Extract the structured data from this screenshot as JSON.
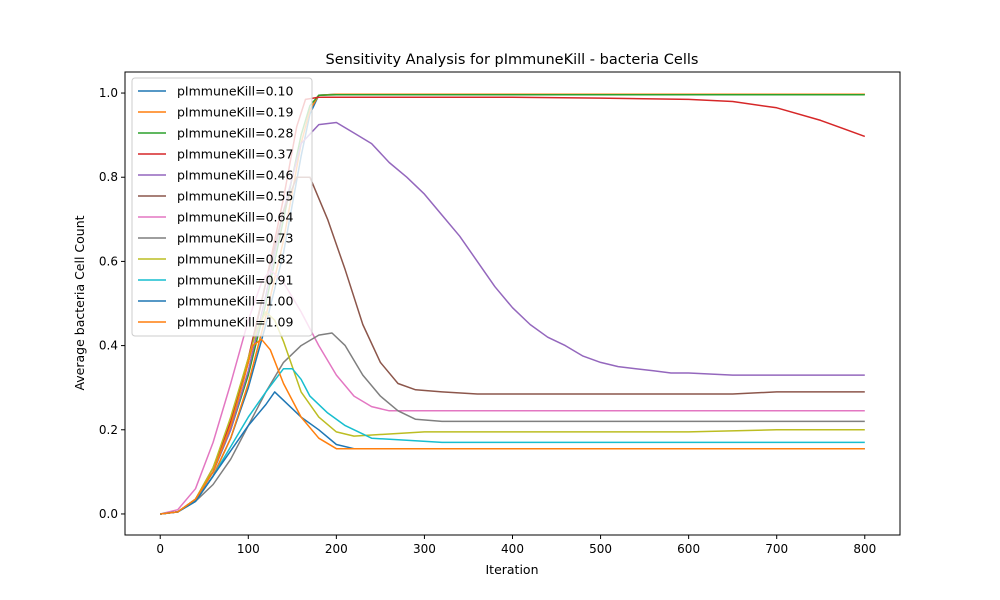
{
  "chart_data": {
    "type": "line",
    "title": "Sensitivity Analysis for pImmuneKill - bacteria Cells",
    "xlabel": "Iteration",
    "ylabel": "Average bacteria Cell Count",
    "xlim": [
      -40,
      840
    ],
    "ylim": [
      -0.05,
      1.05
    ],
    "xticks": [
      0,
      100,
      200,
      300,
      400,
      500,
      600,
      700,
      800
    ],
    "xtick_labels": [
      "0",
      "100",
      "200",
      "300",
      "400",
      "500",
      "600",
      "700",
      "800"
    ],
    "yticks": [
      0.0,
      0.2,
      0.4,
      0.6,
      0.8,
      1.0
    ],
    "ytick_labels": [
      "0.0",
      "0.2",
      "0.4",
      "0.6",
      "0.8",
      "1.0"
    ],
    "grid": false,
    "legend_position": "top-left",
    "series": [
      {
        "name": "pImmuneKill=0.10",
        "color": "#1f77b4",
        "points": [
          [
            0,
            0
          ],
          [
            20,
            0.005
          ],
          [
            40,
            0.03
          ],
          [
            60,
            0.09
          ],
          [
            80,
            0.18
          ],
          [
            100,
            0.3
          ],
          [
            120,
            0.45
          ],
          [
            140,
            0.62
          ],
          [
            160,
            0.85
          ],
          [
            170,
            0.95
          ],
          [
            180,
            0.995
          ],
          [
            200,
            0.997
          ],
          [
            300,
            0.997
          ],
          [
            400,
            0.997
          ],
          [
            500,
            0.997
          ],
          [
            600,
            0.997
          ],
          [
            700,
            0.997
          ],
          [
            800,
            0.997
          ]
        ]
      },
      {
        "name": "pImmuneKill=0.19",
        "color": "#ff7f0e",
        "points": [
          [
            0,
            0
          ],
          [
            20,
            0.005
          ],
          [
            40,
            0.03
          ],
          [
            60,
            0.09
          ],
          [
            80,
            0.18
          ],
          [
            100,
            0.31
          ],
          [
            120,
            0.47
          ],
          [
            140,
            0.65
          ],
          [
            160,
            0.88
          ],
          [
            170,
            0.96
          ],
          [
            180,
            0.995
          ],
          [
            200,
            0.997
          ],
          [
            300,
            0.997
          ],
          [
            400,
            0.997
          ],
          [
            500,
            0.997
          ],
          [
            600,
            0.997
          ],
          [
            700,
            0.997
          ],
          [
            800,
            0.997
          ]
        ]
      },
      {
        "name": "pImmuneKill=0.28",
        "color": "#2ca02c",
        "points": [
          [
            0,
            0
          ],
          [
            20,
            0.005
          ],
          [
            40,
            0.035
          ],
          [
            60,
            0.1
          ],
          [
            80,
            0.2
          ],
          [
            100,
            0.33
          ],
          [
            120,
            0.5
          ],
          [
            140,
            0.7
          ],
          [
            160,
            0.9
          ],
          [
            170,
            0.97
          ],
          [
            180,
            0.995
          ],
          [
            200,
            0.996
          ],
          [
            300,
            0.996
          ],
          [
            400,
            0.996
          ],
          [
            500,
            0.996
          ],
          [
            600,
            0.996
          ],
          [
            700,
            0.996
          ],
          [
            800,
            0.996
          ]
        ]
      },
      {
        "name": "pImmuneKill=0.37",
        "color": "#d62728",
        "points": [
          [
            0,
            0
          ],
          [
            20,
            0.005
          ],
          [
            40,
            0.035
          ],
          [
            60,
            0.11
          ],
          [
            80,
            0.22
          ],
          [
            100,
            0.37
          ],
          [
            120,
            0.55
          ],
          [
            140,
            0.75
          ],
          [
            155,
            0.92
          ],
          [
            165,
            0.985
          ],
          [
            180,
            0.99
          ],
          [
            300,
            0.99
          ],
          [
            400,
            0.99
          ],
          [
            500,
            0.988
          ],
          [
            600,
            0.985
          ],
          [
            650,
            0.98
          ],
          [
            700,
            0.965
          ],
          [
            750,
            0.935
          ],
          [
            800,
            0.897
          ]
        ]
      },
      {
        "name": "pImmuneKill=0.46",
        "color": "#9467bd",
        "points": [
          [
            0,
            0
          ],
          [
            20,
            0.005
          ],
          [
            40,
            0.035
          ],
          [
            60,
            0.1
          ],
          [
            80,
            0.2
          ],
          [
            100,
            0.34
          ],
          [
            120,
            0.52
          ],
          [
            140,
            0.72
          ],
          [
            160,
            0.88
          ],
          [
            180,
            0.925
          ],
          [
            200,
            0.93
          ],
          [
            220,
            0.905
          ],
          [
            240,
            0.88
          ],
          [
            260,
            0.835
          ],
          [
            280,
            0.8
          ],
          [
            300,
            0.76
          ],
          [
            320,
            0.71
          ],
          [
            340,
            0.66
          ],
          [
            360,
            0.6
          ],
          [
            380,
            0.54
          ],
          [
            400,
            0.49
          ],
          [
            420,
            0.45
          ],
          [
            440,
            0.42
          ],
          [
            460,
            0.4
          ],
          [
            480,
            0.375
          ],
          [
            500,
            0.36
          ],
          [
            520,
            0.35
          ],
          [
            540,
            0.345
          ],
          [
            560,
            0.34
          ],
          [
            580,
            0.335
          ],
          [
            600,
            0.335
          ],
          [
            650,
            0.33
          ],
          [
            700,
            0.33
          ],
          [
            750,
            0.33
          ],
          [
            800,
            0.33
          ]
        ]
      },
      {
        "name": "pImmuneKill=0.55",
        "color": "#8c564b",
        "points": [
          [
            0,
            0
          ],
          [
            20,
            0.005
          ],
          [
            40,
            0.035
          ],
          [
            60,
            0.1
          ],
          [
            80,
            0.21
          ],
          [
            100,
            0.36
          ],
          [
            120,
            0.55
          ],
          [
            140,
            0.72
          ],
          [
            155,
            0.8
          ],
          [
            170,
            0.8
          ],
          [
            190,
            0.7
          ],
          [
            210,
            0.58
          ],
          [
            230,
            0.45
          ],
          [
            250,
            0.36
          ],
          [
            270,
            0.31
          ],
          [
            290,
            0.295
          ],
          [
            320,
            0.29
          ],
          [
            360,
            0.285
          ],
          [
            400,
            0.285
          ],
          [
            450,
            0.285
          ],
          [
            500,
            0.285
          ],
          [
            550,
            0.285
          ],
          [
            600,
            0.285
          ],
          [
            650,
            0.285
          ],
          [
            700,
            0.29
          ],
          [
            750,
            0.29
          ],
          [
            800,
            0.29
          ]
        ]
      },
      {
        "name": "pImmuneKill=0.64",
        "color": "#e377c2",
        "points": [
          [
            0,
            0
          ],
          [
            20,
            0.01
          ],
          [
            40,
            0.06
          ],
          [
            60,
            0.17
          ],
          [
            80,
            0.31
          ],
          [
            100,
            0.46
          ],
          [
            115,
            0.55
          ],
          [
            125,
            0.58
          ],
          [
            140,
            0.55
          ],
          [
            160,
            0.48
          ],
          [
            180,
            0.4
          ],
          [
            200,
            0.33
          ],
          [
            220,
            0.28
          ],
          [
            240,
            0.255
          ],
          [
            260,
            0.245
          ],
          [
            280,
            0.245
          ],
          [
            320,
            0.245
          ],
          [
            400,
            0.245
          ],
          [
            500,
            0.245
          ],
          [
            600,
            0.245
          ],
          [
            700,
            0.245
          ],
          [
            800,
            0.245
          ]
        ]
      },
      {
        "name": "pImmuneKill=0.73",
        "color": "#7f7f7f",
        "points": [
          [
            0,
            0
          ],
          [
            20,
            0.005
          ],
          [
            40,
            0.03
          ],
          [
            60,
            0.07
          ],
          [
            80,
            0.13
          ],
          [
            100,
            0.21
          ],
          [
            120,
            0.29
          ],
          [
            140,
            0.36
          ],
          [
            160,
            0.4
          ],
          [
            180,
            0.425
          ],
          [
            195,
            0.43
          ],
          [
            210,
            0.4
          ],
          [
            230,
            0.33
          ],
          [
            250,
            0.28
          ],
          [
            270,
            0.245
          ],
          [
            290,
            0.225
          ],
          [
            320,
            0.22
          ],
          [
            400,
            0.22
          ],
          [
            500,
            0.22
          ],
          [
            600,
            0.22
          ],
          [
            700,
            0.22
          ],
          [
            800,
            0.22
          ]
        ]
      },
      {
        "name": "pImmuneKill=0.82",
        "color": "#bcbd22",
        "points": [
          [
            0,
            0
          ],
          [
            20,
            0.005
          ],
          [
            40,
            0.035
          ],
          [
            60,
            0.11
          ],
          [
            80,
            0.23
          ],
          [
            100,
            0.37
          ],
          [
            110,
            0.44
          ],
          [
            120,
            0.48
          ],
          [
            130,
            0.46
          ],
          [
            140,
            0.41
          ],
          [
            150,
            0.35
          ],
          [
            160,
            0.29
          ],
          [
            180,
            0.23
          ],
          [
            200,
            0.195
          ],
          [
            220,
            0.185
          ],
          [
            260,
            0.19
          ],
          [
            300,
            0.195
          ],
          [
            400,
            0.195
          ],
          [
            500,
            0.195
          ],
          [
            600,
            0.195
          ],
          [
            700,
            0.2
          ],
          [
            800,
            0.2
          ]
        ]
      },
      {
        "name": "pImmuneKill=0.91",
        "color": "#17becf",
        "points": [
          [
            0,
            0
          ],
          [
            20,
            0.005
          ],
          [
            40,
            0.03
          ],
          [
            60,
            0.09
          ],
          [
            80,
            0.16
          ],
          [
            100,
            0.23
          ],
          [
            120,
            0.29
          ],
          [
            140,
            0.345
          ],
          [
            150,
            0.345
          ],
          [
            160,
            0.32
          ],
          [
            170,
            0.28
          ],
          [
            190,
            0.24
          ],
          [
            210,
            0.21
          ],
          [
            240,
            0.18
          ],
          [
            280,
            0.175
          ],
          [
            320,
            0.17
          ],
          [
            400,
            0.17
          ],
          [
            500,
            0.17
          ],
          [
            600,
            0.17
          ],
          [
            700,
            0.17
          ],
          [
            800,
            0.17
          ]
        ]
      },
      {
        "name": "pImmuneKill=1.00",
        "color": "#1f77b4",
        "points": [
          [
            0,
            0
          ],
          [
            20,
            0.005
          ],
          [
            40,
            0.03
          ],
          [
            60,
            0.09
          ],
          [
            80,
            0.15
          ],
          [
            100,
            0.21
          ],
          [
            120,
            0.26
          ],
          [
            130,
            0.29
          ],
          [
            140,
            0.27
          ],
          [
            160,
            0.23
          ],
          [
            180,
            0.2
          ],
          [
            200,
            0.165
          ],
          [
            220,
            0.155
          ],
          [
            260,
            0.155
          ],
          [
            300,
            0.155
          ],
          [
            400,
            0.155
          ],
          [
            500,
            0.155
          ],
          [
            600,
            0.155
          ],
          [
            700,
            0.155
          ],
          [
            800,
            0.155
          ]
        ]
      },
      {
        "name": "pImmuneKill=1.09",
        "color": "#ff7f0e",
        "points": [
          [
            0,
            0
          ],
          [
            20,
            0.005
          ],
          [
            40,
            0.035
          ],
          [
            60,
            0.1
          ],
          [
            80,
            0.21
          ],
          [
            95,
            0.32
          ],
          [
            105,
            0.4
          ],
          [
            115,
            0.415
          ],
          [
            125,
            0.39
          ],
          [
            140,
            0.31
          ],
          [
            160,
            0.23
          ],
          [
            180,
            0.18
          ],
          [
            200,
            0.155
          ],
          [
            240,
            0.155
          ],
          [
            300,
            0.155
          ],
          [
            400,
            0.155
          ],
          [
            500,
            0.155
          ],
          [
            600,
            0.155
          ],
          [
            700,
            0.155
          ],
          [
            800,
            0.155
          ]
        ]
      }
    ]
  }
}
